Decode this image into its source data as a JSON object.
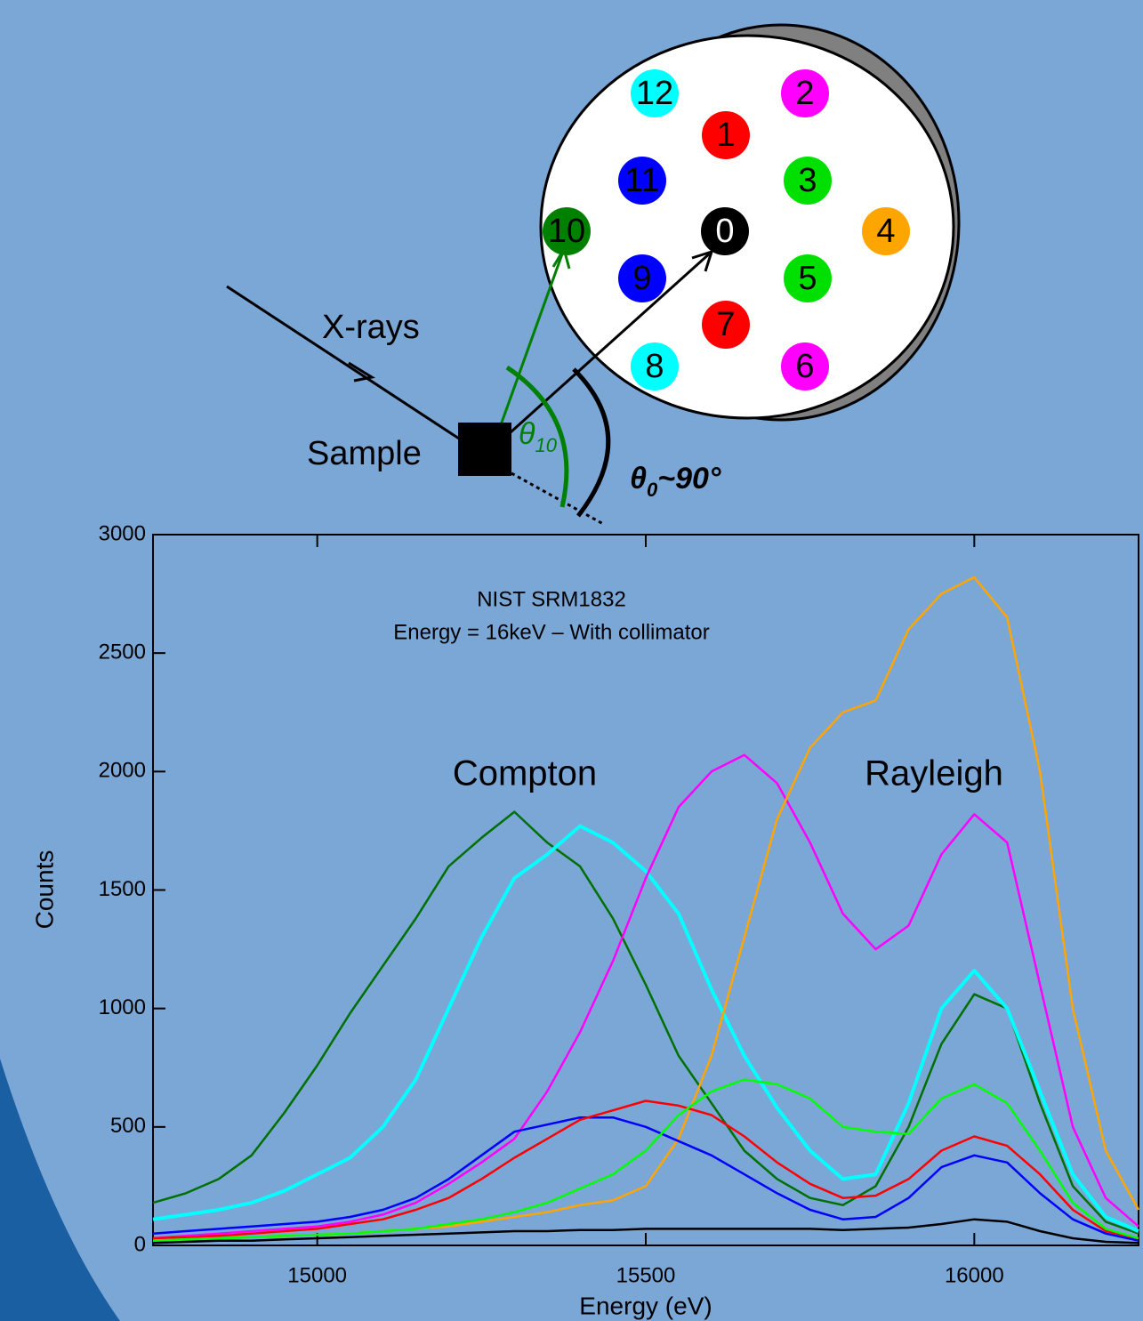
{
  "diagram": {
    "detectors": [
      {
        "label": "12",
        "color": "#00ffff"
      },
      {
        "label": "2",
        "color": "#ff00ff"
      },
      {
        "label": "1",
        "color": "#ff0000"
      },
      {
        "label": "11",
        "color": "#0000ff"
      },
      {
        "label": "3",
        "color": "#00e000"
      },
      {
        "label": "10",
        "color": "#008000"
      },
      {
        "label": "0",
        "color": "#000000"
      },
      {
        "label": "4",
        "color": "#ffa500"
      },
      {
        "label": "9",
        "color": "#0000ff"
      },
      {
        "label": "5",
        "color": "#00e000"
      },
      {
        "label": "7",
        "color": "#ff0000"
      },
      {
        "label": "8",
        "color": "#00ffff"
      },
      {
        "label": "6",
        "color": "#ff00ff"
      }
    ],
    "xray_label": "X-rays",
    "sample_label": "Sample",
    "theta_symbol": "θ",
    "theta10_sub": "10",
    "theta0_sub": "0",
    "theta0_value": "~90°"
  },
  "chart_data": {
    "type": "line",
    "annotations": [
      "NIST SRM1832",
      "Energy = 16keV – With collimator",
      "Compton",
      "Rayleigh"
    ],
    "x_label": "Energy (eV)",
    "y_label": "Counts",
    "xlim": [
      14750,
      16250
    ],
    "ylim": [
      0,
      3000
    ],
    "xticks": [
      15000,
      15500,
      16000
    ],
    "yticks": [
      0,
      500,
      1000,
      1500,
      2000,
      2500,
      3000
    ],
    "x": [
      14750,
      14800,
      14850,
      14900,
      14950,
      15000,
      15050,
      15100,
      15150,
      15200,
      15250,
      15300,
      15350,
      15400,
      15450,
      15500,
      15550,
      15600,
      15650,
      15700,
      15750,
      15800,
      15850,
      15900,
      15950,
      16000,
      16050,
      16100,
      16150,
      16200,
      16250
    ],
    "series": [
      {
        "color": "#007000",
        "values": [
          180,
          220,
          280,
          380,
          560,
          760,
          980,
          1180,
          1380,
          1600,
          1720,
          1830,
          1700,
          1600,
          1380,
          1100,
          800,
          600,
          400,
          280,
          200,
          170,
          250,
          500,
          850,
          1060,
          1000,
          600,
          250,
          100,
          50
        ]
      },
      {
        "color": "#00ffff",
        "values": [
          110,
          130,
          150,
          180,
          230,
          300,
          370,
          500,
          700,
          1000,
          1300,
          1550,
          1650,
          1770,
          1700,
          1580,
          1400,
          1080,
          800,
          580,
          400,
          280,
          300,
          600,
          1000,
          1160,
          1000,
          650,
          300,
          120,
          60
        ]
      },
      {
        "color": "#ff00ff",
        "values": [
          30,
          40,
          50,
          60,
          70,
          80,
          100,
          130,
          180,
          260,
          350,
          450,
          650,
          900,
          1200,
          1550,
          1850,
          2000,
          2070,
          1950,
          1700,
          1400,
          1250,
          1350,
          1650,
          1820,
          1700,
          1100,
          500,
          200,
          80
        ]
      },
      {
        "color": "#ffa500",
        "values": [
          20,
          25,
          30,
          35,
          40,
          45,
          50,
          60,
          70,
          80,
          100,
          120,
          140,
          170,
          190,
          250,
          450,
          800,
          1300,
          1800,
          2100,
          2250,
          2300,
          2600,
          2750,
          2820,
          2650,
          2000,
          1000,
          400,
          150
        ]
      },
      {
        "color": "#0000ff",
        "values": [
          50,
          60,
          70,
          80,
          90,
          100,
          120,
          150,
          200,
          280,
          380,
          480,
          510,
          540,
          540,
          500,
          440,
          380,
          300,
          220,
          150,
          110,
          120,
          200,
          330,
          380,
          350,
          220,
          110,
          50,
          20
        ]
      },
      {
        "color": "#ff0000",
        "values": [
          30,
          35,
          40,
          50,
          60,
          70,
          90,
          110,
          150,
          200,
          280,
          370,
          450,
          530,
          570,
          610,
          590,
          550,
          460,
          350,
          260,
          200,
          210,
          280,
          400,
          460,
          420,
          300,
          150,
          60,
          30
        ]
      },
      {
        "color": "#00ff00",
        "values": [
          20,
          25,
          30,
          35,
          40,
          45,
          50,
          60,
          70,
          90,
          110,
          140,
          180,
          240,
          300,
          400,
          550,
          650,
          700,
          680,
          620,
          500,
          480,
          470,
          620,
          680,
          600,
          400,
          180,
          70,
          30
        ]
      },
      {
        "color": "#000000",
        "values": [
          10,
          15,
          20,
          20,
          25,
          30,
          35,
          40,
          45,
          50,
          55,
          60,
          60,
          65,
          65,
          70,
          70,
          70,
          70,
          70,
          70,
          65,
          70,
          75,
          90,
          110,
          100,
          60,
          30,
          15,
          10
        ]
      }
    ]
  }
}
